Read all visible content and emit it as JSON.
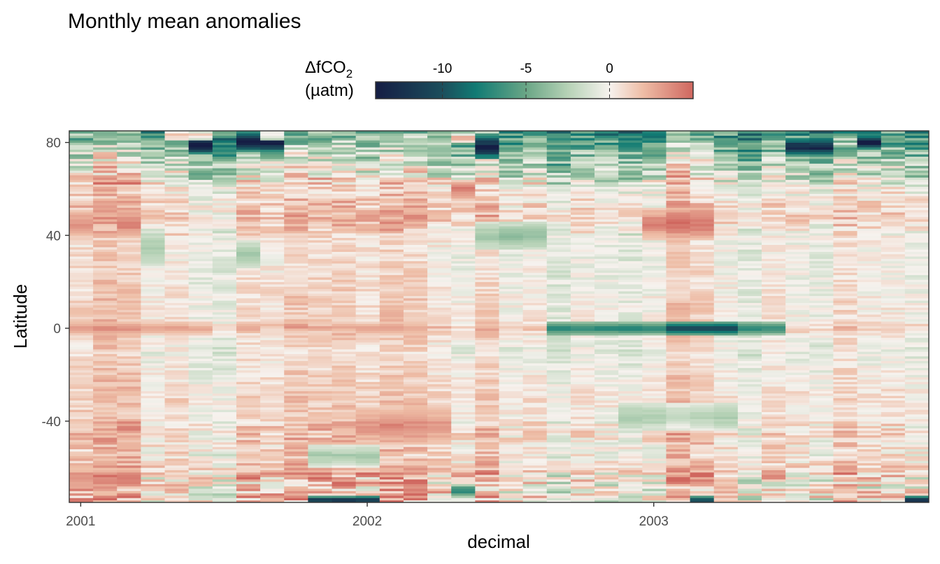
{
  "chart_data": {
    "type": "heatmap",
    "title": "Monthly mean anomalies",
    "xlabel": "decimal",
    "ylabel": "Latitude",
    "x_ticks": [
      2001,
      2002,
      2003
    ],
    "x_tick_labels": [
      "2001",
      "2002",
      "2003"
    ],
    "y_ticks": [
      80,
      40,
      0,
      -40
    ],
    "y_tick_labels": [
      "80",
      "40",
      "0",
      "-40"
    ],
    "xlim": [
      2000.96,
      2003.96
    ],
    "ylim": [
      -75,
      85
    ],
    "n_months": 36,
    "lat_band_deg": 1,
    "legend": {
      "title_line1": "ΔfCO",
      "title_sub": "2",
      "title_line2": "(µatm)",
      "placement": "top-center",
      "ticks": [
        -10,
        -5,
        0
      ],
      "tick_labels": [
        "-10",
        "-5",
        "0"
      ],
      "range": [
        -14,
        5
      ],
      "colors": [
        {
          "value": -14,
          "color": "#151d44"
        },
        {
          "value": -10,
          "color": "#1c4e5c"
        },
        {
          "value": -8,
          "color": "#117b74"
        },
        {
          "value": -5,
          "color": "#6aa686"
        },
        {
          "value": -2.5,
          "color": "#b6d2b6"
        },
        {
          "value": 0,
          "color": "#f6f2ee"
        },
        {
          "value": 2,
          "color": "#eebda6"
        },
        {
          "value": 5,
          "color": "#d0675f"
        }
      ]
    },
    "month_offsets": [
      1.2,
      3.0,
      2.5,
      -0.5,
      0.3,
      -1.5,
      -1.8,
      1.0,
      0.4,
      2.0,
      1.5,
      1.8,
      0.8,
      2.2,
      1.9,
      0.2,
      -0.8,
      1.6,
      -1.0,
      -0.3,
      -2.2,
      -0.5,
      -1.2,
      -1.8,
      -0.9,
      2.5,
      1.4,
      -0.6,
      -2.0,
      0.1,
      -0.7,
      -1.4,
      0.9,
      -0.4,
      -0.2,
      -1.1
    ],
    "zonal_profile": [
      {
        "lat": -75,
        "value": 0.5
      },
      {
        "lat": -72,
        "value": 1.5
      },
      {
        "lat": -68,
        "value": 0.2
      },
      {
        "lat": -62,
        "value": 2.0
      },
      {
        "lat": -55,
        "value": 0.5
      },
      {
        "lat": -45,
        "value": 1.2
      },
      {
        "lat": -38,
        "value": 0.6
      },
      {
        "lat": -30,
        "value": 0.9
      },
      {
        "lat": -20,
        "value": 0.4
      },
      {
        "lat": -10,
        "value": -0.2
      },
      {
        "lat": -3,
        "value": 0.5
      },
      {
        "lat": 0,
        "value": 1.8
      },
      {
        "lat": 4,
        "value": 0.4
      },
      {
        "lat": 12,
        "value": 0.5
      },
      {
        "lat": 20,
        "value": 0.2
      },
      {
        "lat": 30,
        "value": 0.0
      },
      {
        "lat": 40,
        "value": 0.3
      },
      {
        "lat": 48,
        "value": 1.5
      },
      {
        "lat": 56,
        "value": 0.8
      },
      {
        "lat": 62,
        "value": 0.0
      },
      {
        "lat": 68,
        "value": -1.5
      },
      {
        "lat": 74,
        "value": -3.0
      },
      {
        "lat": 80,
        "value": -4.5
      },
      {
        "lat": 85,
        "value": -6.0
      }
    ],
    "events": [
      {
        "month": 20,
        "month_end": 29,
        "lat": 0,
        "half_width": 3,
        "value": -8
      },
      {
        "month": 25,
        "month_end": 27,
        "lat": 0,
        "half_width": 3,
        "value": -9
      },
      {
        "month": 0,
        "month_end": 5,
        "lat": 0,
        "half_width": 3,
        "value": 2.5
      },
      {
        "month": 12,
        "month_end": 14,
        "lat": 0,
        "half_width": 3,
        "value": 2.0
      },
      {
        "month": 24,
        "month_end": 26,
        "lat": 45,
        "half_width": 7,
        "value": 4.0
      },
      {
        "month": 2,
        "month_end": 2,
        "lat": 45,
        "half_width": 6,
        "value": 3.5
      },
      {
        "month": 0,
        "month_end": 0,
        "lat": 45,
        "half_width": 6,
        "value": 3.0
      },
      {
        "month": 16,
        "month_end": 16,
        "lat": 60,
        "half_width": 4,
        "value": 4.5
      },
      {
        "month": 17,
        "month_end": 19,
        "lat": 40,
        "half_width": 6,
        "value": -4.0
      },
      {
        "month": 3,
        "month_end": 3,
        "lat": 35,
        "half_width": 8,
        "value": -3.0
      },
      {
        "month": 7,
        "month_end": 7,
        "lat": 32,
        "half_width": 6,
        "value": -3.5
      },
      {
        "month": 12,
        "month_end": 15,
        "lat": -42,
        "half_width": 8,
        "value": 3.0
      },
      {
        "month": 23,
        "month_end": 27,
        "lat": -38,
        "half_width": 6,
        "value": -3.0
      },
      {
        "month": 10,
        "month_end": 12,
        "lat": -55,
        "half_width": 5,
        "value": -3.5
      },
      {
        "month": 0,
        "month_end": 2,
        "lat": -65,
        "half_width": 4,
        "value": 3.5
      },
      {
        "month": 16,
        "month_end": 16,
        "lat": -70,
        "half_width": 3,
        "value": -7
      },
      {
        "month": 10,
        "month_end": 12,
        "lat": -74,
        "half_width": 2,
        "value": -14
      },
      {
        "month": 26,
        "month_end": 26,
        "lat": -74,
        "half_width": 2,
        "value": -13
      },
      {
        "month": 35,
        "month_end": 35,
        "lat": -74,
        "half_width": 2,
        "value": -14
      },
      {
        "month": 7,
        "month_end": 8,
        "lat": 80,
        "half_width": 4,
        "value": -14
      },
      {
        "month": 17,
        "month_end": 17,
        "lat": 78,
        "half_width": 5,
        "value": -14
      },
      {
        "month": 5,
        "month_end": 5,
        "lat": 79,
        "half_width": 4,
        "value": -13
      },
      {
        "month": 30,
        "month_end": 31,
        "lat": 78,
        "half_width": 4,
        "value": -12
      },
      {
        "month": 33,
        "month_end": 33,
        "lat": 80,
        "half_width": 3,
        "value": -13
      },
      {
        "month": 4,
        "month_end": 5,
        "lat": 83,
        "half_width": 2,
        "value": 4.0
      },
      {
        "month": 8,
        "month_end": 8,
        "lat": 83,
        "half_width": 2,
        "value": 3.5
      },
      {
        "month": 16,
        "month_end": 16,
        "lat": 82,
        "half_width": 2,
        "value": 4.5
      }
    ]
  }
}
